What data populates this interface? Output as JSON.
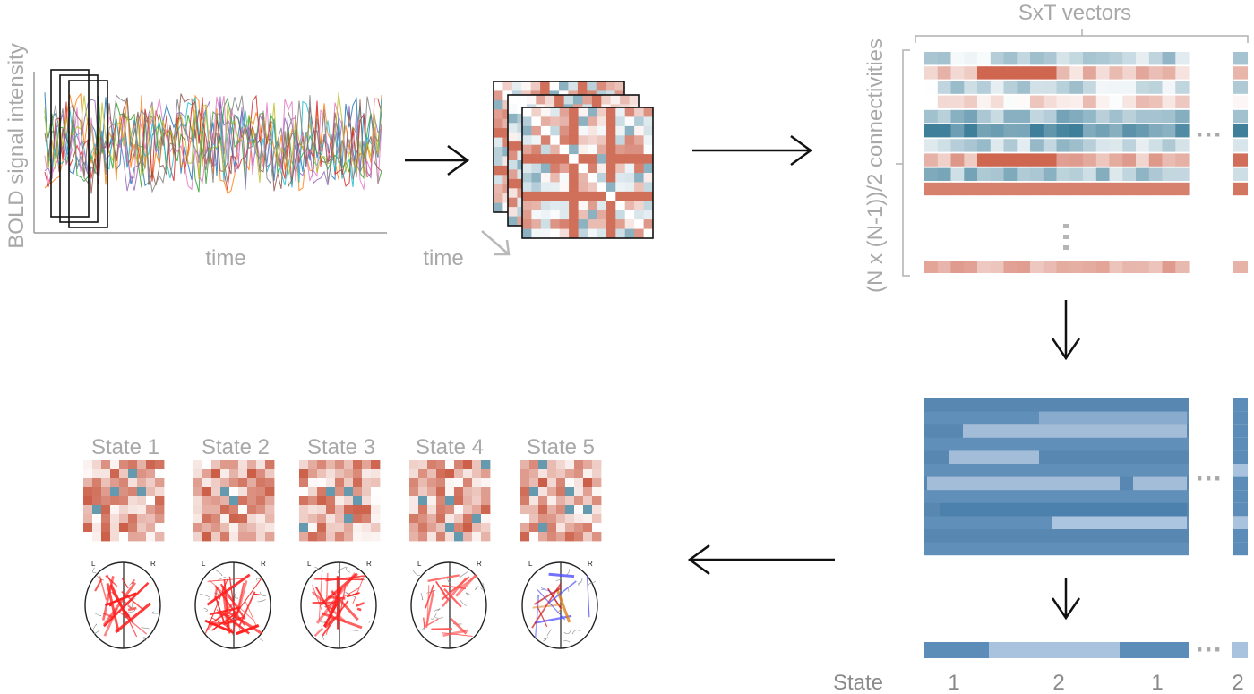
{
  "bold_panel": {
    "ylabel": "BOLD signal intensity",
    "xlabel": "time",
    "series_colors": [
      "#1f77b4",
      "#ff7f0e",
      "#2ca02c",
      "#d62728",
      "#9467bd",
      "#17becf",
      "#e377c2",
      "#8c564b",
      "#bcbd22",
      "#7f7f7f"
    ]
  },
  "fc_stack": {
    "time_label": "time"
  },
  "vectors_panel": {
    "top_label": "SxT vectors",
    "side_label": "(N x (N-1))/2 connectivities",
    "ellipsis": "···",
    "vellipsis": "⋮"
  },
  "states_row": {
    "prefix": "State",
    "values": [
      "1",
      "2",
      "1",
      "2"
    ]
  },
  "state_matrices": [
    {
      "label": "State 1",
      "edge_color": "#ff2020"
    },
    {
      "label": "State 2",
      "edge_color": "#ff2020"
    },
    {
      "label": "State 3",
      "edge_color": "#ff2020"
    },
    {
      "label": "State 4",
      "edge_color": "#ff5050"
    },
    {
      "label": "State 5",
      "edge_color": "#5050ff"
    }
  ],
  "brain_labels": {
    "left": "L",
    "right": "R"
  },
  "colors": {
    "corr_positive": "#c8553d",
    "corr_negative": "#3f7f9a",
    "cluster_blue": "#5b8db8",
    "cluster_light": "#a9c3de",
    "arrow": "#111111",
    "label_gray": "#a8a8a8"
  }
}
